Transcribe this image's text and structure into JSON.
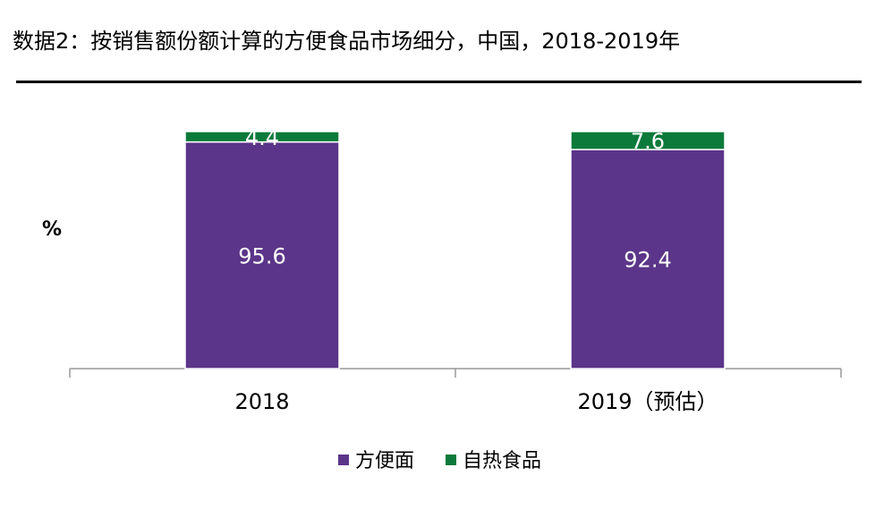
{
  "title": "数据2：按销售额份额计算的方便食品市场细分，中国，2018-2019年",
  "chart_data": {
    "type": "bar",
    "stacked": true,
    "title": "数据2：按销售额份额计算的方便食品市场细分，中国，2018-2019年",
    "ylabel": "%",
    "xlabel": "",
    "ylim": [
      0,
      100
    ],
    "categories": [
      "2018",
      "2019（预估）"
    ],
    "series": [
      {
        "name": "方便面",
        "color": "#5B3589",
        "values": [
          95.6,
          92.4
        ]
      },
      {
        "name": "自热食品",
        "color": "#0B7A3B",
        "values": [
          4.4,
          7.6
        ]
      }
    ],
    "data_labels": [
      [
        "95.6",
        "92.4"
      ],
      [
        "4.4",
        "7.6"
      ]
    ],
    "legend": "bottom-center"
  }
}
